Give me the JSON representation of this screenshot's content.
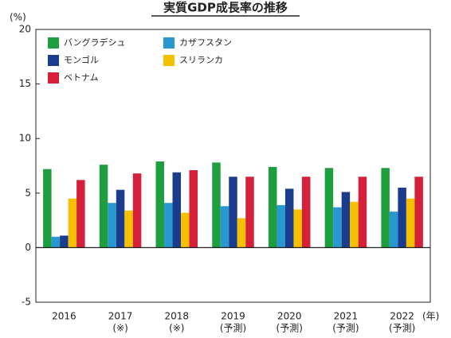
{
  "chart_data": {
    "type": "bar",
    "title": "実質GDP成長率の推移",
    "y_unit": "(%)",
    "x_unit": "(年)",
    "categories": [
      "2016",
      "2017",
      "2018",
      "2019",
      "2020",
      "2021",
      "2022"
    ],
    "category_notes": [
      null,
      "(※)",
      "(※)",
      "(予測)",
      "(予測)",
      "(予測)",
      "(予測)"
    ],
    "series": [
      {
        "name": "バングラデシュ",
        "color": "#1e9e3e",
        "values": [
          7.2,
          7.6,
          7.9,
          7.8,
          7.4,
          7.3,
          7.3
        ]
      },
      {
        "name": "カザフスタン",
        "color": "#2a98d0",
        "values": [
          1.0,
          4.1,
          4.1,
          3.8,
          3.9,
          3.7,
          3.3
        ]
      },
      {
        "name": "モンゴル",
        "color": "#1b3c8c",
        "values": [
          1.1,
          5.3,
          6.9,
          6.5,
          5.4,
          5.1,
          5.5
        ]
      },
      {
        "name": "スリランカ",
        "color": "#f4c000",
        "values": [
          4.5,
          3.4,
          3.2,
          2.7,
          3.5,
          4.2,
          4.5
        ]
      },
      {
        "name": "ベトナム",
        "color": "#d6203a",
        "values": [
          6.2,
          6.8,
          7.1,
          6.5,
          6.5,
          6.5,
          6.5
        ]
      }
    ],
    "ylim": [
      -5,
      20
    ],
    "yticks": [
      -5,
      0,
      5,
      10,
      15,
      20
    ]
  }
}
